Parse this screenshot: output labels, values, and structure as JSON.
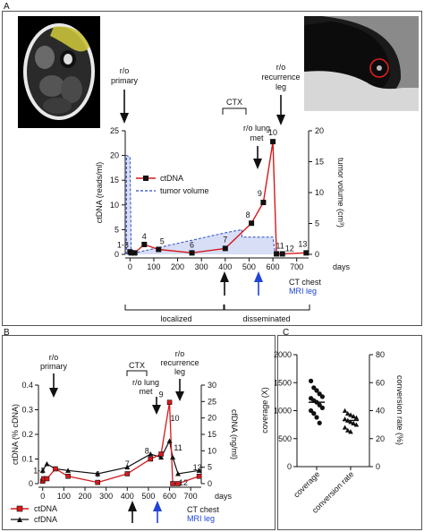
{
  "panel_letters": {
    "a": "A",
    "b": "B",
    "c": "C"
  },
  "colors": {
    "ctdna": "#d7191c",
    "tumor": "#2b4cc4",
    "tumor_fill": "#c9d3f3",
    "mri": "#1f44d6",
    "black": "#111111"
  },
  "panelA": {
    "annotations": {
      "ro_primary": "r/o primary",
      "ctx": "CTX",
      "ro_lung_met": "r/o lung met",
      "ro_recurrence_leg": "r/o recurrence leg",
      "ct_chest": "CT chest",
      "mri_leg": "MRI leg",
      "localized": "localized",
      "disseminated": "disseminated",
      "days": "days"
    }
  },
  "panelB": {
    "annotations": {
      "ro_primary": "r/o primary",
      "ctx": "CTX",
      "ro_lung_met": "r/o lung met",
      "ro_recurrence_leg": "r/o recurrence leg",
      "ct_chest": "CT chest",
      "mri_leg": "MRI leg",
      "days": "days"
    }
  },
  "chart_data": [
    {
      "id": "A",
      "type": "line",
      "xlabel": "days",
      "ylabel": "ctDNA (reads/ml)",
      "y2label": "tumor volume (cm3)",
      "xlim": [
        -20,
        750
      ],
      "ylim": [
        0,
        25
      ],
      "y2lim": [
        0,
        20
      ],
      "xticks": [
        0,
        100,
        200,
        300,
        400,
        500,
        600,
        700
      ],
      "yticks": [
        0,
        5,
        10,
        15,
        20,
        25
      ],
      "y2ticks": [
        0,
        5,
        10,
        15,
        20
      ],
      "legend_position": "top-left",
      "series": [
        {
          "name": "ctDNA",
          "axis": "left",
          "x": [
            0,
            5,
            20,
            60,
            120,
            260,
            400,
            510,
            560,
            600,
            615,
            640,
            740
          ],
          "y": [
            0.5,
            0.3,
            0.3,
            2.0,
            1.0,
            0.3,
            1.2,
            6.3,
            10.5,
            22.8,
            0.1,
            0.1,
            0.3
          ],
          "point_labels": [
            "1",
            "2",
            "3",
            "4",
            "5",
            "6",
            "7",
            "8",
            "9",
            "10",
            "11",
            "12",
            "13"
          ],
          "shown_labels": [
            {
              "text": "1-3",
              "x": 0,
              "y": 0.3
            },
            {
              "text": "4",
              "x": 60,
              "y": 2.0
            },
            {
              "text": "5",
              "x": 120,
              "y": 1.0
            },
            {
              "text": "6",
              "x": 260,
              "y": 0.3
            },
            {
              "text": "7",
              "x": 400,
              "y": 1.2
            },
            {
              "text": "8",
              "x": 510,
              "y": 6.3
            },
            {
              "text": "9",
              "x": 560,
              "y": 10.5
            },
            {
              "text": "10",
              "x": 600,
              "y": 22.8
            },
            {
              "text": "11",
              "x": 615,
              "y": 0.1
            },
            {
              "text": "12",
              "x": 640,
              "y": 0.1
            },
            {
              "text": "13",
              "x": 740,
              "y": 0.3
            }
          ]
        },
        {
          "name": "tumor volume",
          "axis": "right",
          "x": [
            -15,
            -15,
            0,
            5,
            400,
            470,
            470,
            600,
            610,
            615
          ],
          "y": [
            0,
            16,
            15.8,
            0.1,
            3.5,
            4.0,
            2.8,
            2.8,
            0,
            0
          ]
        }
      ]
    },
    {
      "id": "B",
      "type": "line",
      "xlabel": "days",
      "ylabel": "ctDNA (% cDNA)",
      "y2label": "cfDNA (ng/ml)",
      "xlim": [
        -20,
        750
      ],
      "ylim": [
        0,
        0.4
      ],
      "y2lim": [
        0,
        30
      ],
      "xticks": [
        0,
        100,
        200,
        300,
        400,
        500,
        600,
        700
      ],
      "yticks": [
        0,
        0.1,
        0.2,
        0.3,
        0.4
      ],
      "y2ticks": [
        0,
        5,
        10,
        15,
        20,
        25,
        30
      ],
      "legend_position": "bottom-left",
      "series": [
        {
          "name": "ctDNA",
          "axis": "left",
          "x": [
            0,
            5,
            20,
            60,
            120,
            260,
            400,
            510,
            560,
            600,
            615,
            640,
            740
          ],
          "y": [
            0.01,
            0.02,
            0.02,
            0.06,
            0.03,
            0.005,
            0.04,
            0.1,
            0.12,
            0.33,
            0.0,
            0.0,
            0.03
          ],
          "shown_labels": [
            {
              "text": "1-3",
              "x": 0,
              "y": 0.02
            },
            {
              "text": "6",
              "x": 260,
              "y": 0.005
            },
            {
              "text": "7",
              "x": 400,
              "y": 0.04
            },
            {
              "text": "8",
              "x": 510,
              "y": 0.1
            },
            {
              "text": "9",
              "x": 560,
              "y": 0.33
            },
            {
              "text": "10",
              "x": 600,
              "y": 0.24
            },
            {
              "text": "11",
              "x": 615,
              "y": 0.12
            },
            {
              "text": "12",
              "x": 640,
              "y": 0.03
            },
            {
              "text": "13",
              "x": 740,
              "y": 0.03
            }
          ]
        },
        {
          "name": "cfDNA",
          "axis": "right",
          "x": [
            0,
            20,
            60,
            120,
            260,
            400,
            510,
            560,
            600,
            615,
            640,
            740
          ],
          "y": [
            4,
            6,
            4.5,
            4,
            3,
            5,
            9,
            8,
            13,
            8,
            3,
            4
          ]
        }
      ]
    },
    {
      "id": "C",
      "type": "scatter",
      "categories": [
        "coverage",
        "conversion rate"
      ],
      "ylabel": "coverage (X)",
      "y2label": "conversion rate (%)",
      "ylim": [
        0,
        2000
      ],
      "y2lim": [
        0,
        80
      ],
      "yticks": [
        0,
        500,
        1000,
        1500,
        2000
      ],
      "y2ticks": [
        0,
        20,
        40,
        60,
        80
      ],
      "series": [
        {
          "name": "coverage",
          "axis": "left",
          "marker": "circle",
          "values": [
            1530,
            1410,
            1360,
            1300,
            1250,
            1220,
            1180,
            1150,
            1100,
            1050,
            1000,
            950,
            880,
            780
          ],
          "median": 1150
        },
        {
          "name": "conversion rate",
          "axis": "right",
          "marker": "triangle",
          "values": [
            40,
            38,
            37,
            36,
            35,
            34,
            33,
            32,
            31,
            30,
            28,
            26,
            25
          ],
          "median": 33
        }
      ]
    }
  ]
}
